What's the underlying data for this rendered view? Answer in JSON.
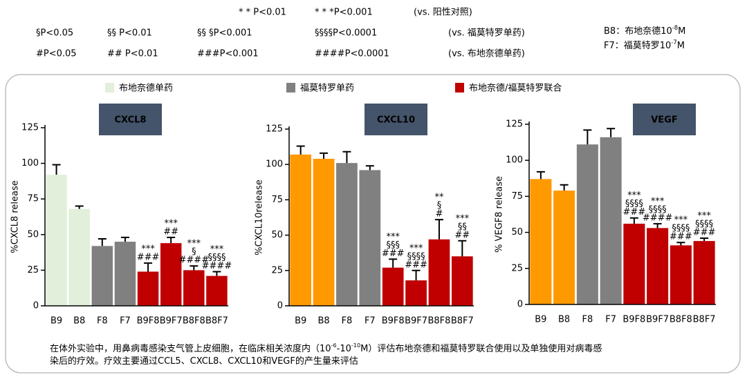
{
  "notes": {
    "rows": [
      [
        "* * P<0.01",
        "* * *P<0.001",
        "(vs. 阳性对照)"
      ],
      [
        "§P<0.05",
        "§§ P<0.01",
        "§§ §P<0.001",
        "§§§§P<0.0001",
        "(vs. 福莫特罗单药)"
      ],
      [
        "#P<0.05",
        "## P<0.01",
        "###P<0.001",
        "####P<0.0001",
        "(vs. 布地奈德单药)"
      ]
    ],
    "doses": [
      [
        "B8：布地奈德10",
        {
          "sup": "-8"
        },
        "M"
      ],
      [
        "F7：福莫特罗10",
        {
          "sup": "-7"
        },
        "M"
      ]
    ]
  },
  "legend": [
    {
      "label": "布地奈德单药",
      "color": "#e2efda"
    },
    {
      "label": "福莫特罗单药",
      "color": "#808080"
    },
    {
      "label": "布地奈德/福莫特罗联合",
      "color": "#c00000"
    }
  ],
  "chart_data": [
    {
      "type": "bar",
      "title": "CXCL8",
      "y_label": "%CXCL8 release",
      "categories": [
        "B9",
        "B8",
        "F8",
        "F7",
        "B9F8",
        "B9F7",
        "B8F8",
        "B8F7"
      ],
      "values": [
        92,
        68,
        42,
        45,
        24,
        44,
        25,
        21
      ],
      "errors": [
        7,
        2,
        5,
        3,
        6,
        4,
        3,
        3
      ],
      "colors": [
        "#e2efda",
        "#e2efda",
        "#808080",
        "#808080",
        "#c00000",
        "#c00000",
        "#c00000",
        "#c00000"
      ],
      "annotations": [
        null,
        null,
        null,
        null,
        [
          "***",
          "###"
        ],
        [
          "***",
          "##"
        ],
        [
          "***",
          "§",
          "####"
        ],
        [
          "***",
          "§§§§",
          "####"
        ]
      ],
      "ylim": [
        0,
        125
      ],
      "yticks": [
        0,
        25,
        50,
        75,
        100,
        125
      ]
    },
    {
      "type": "bar",
      "title": "CXCL10",
      "y_label": "%CXCL10release",
      "categories": [
        "B9",
        "B8",
        "F8",
        "F7",
        "B9F8",
        "B9F7",
        "B8F8",
        "B8F7"
      ],
      "values": [
        107,
        104,
        101,
        96,
        27,
        18,
        47,
        35
      ],
      "errors": [
        6,
        4,
        8,
        3,
        6,
        7,
        14,
        11
      ],
      "colors": [
        "#ff9900",
        "#ff9900",
        "#808080",
        "#808080",
        "#c00000",
        "#c00000",
        "#c00000",
        "#c00000"
      ],
      "annotations": [
        null,
        null,
        null,
        null,
        [
          "***",
          "§§§",
          "###"
        ],
        [
          "***",
          "§§§§",
          "###"
        ],
        [
          "**",
          "§",
          "#"
        ],
        [
          "***",
          "§§",
          "##"
        ]
      ],
      "ylim": [
        0,
        125
      ],
      "yticks": [
        0,
        25,
        50,
        75,
        100,
        125
      ]
    },
    {
      "type": "bar",
      "title": "VEGF",
      "y_label": "% VEGF8 release",
      "categories": [
        "B9",
        "B8",
        "F8",
        "F7",
        "B9F8",
        "B9F7",
        "B8F8",
        "B8F7"
      ],
      "values": [
        87,
        79,
        111,
        116,
        56,
        53,
        41,
        44
      ],
      "errors": [
        5,
        4,
        10,
        6,
        4,
        3,
        2,
        2
      ],
      "colors": [
        "#ff9900",
        "#ff9900",
        "#808080",
        "#808080",
        "#c00000",
        "#c00000",
        "#c00000",
        "#c00000"
      ],
      "annotations": [
        null,
        null,
        null,
        null,
        [
          "***",
          "§§§§",
          "###"
        ],
        [
          "***",
          "§§§§",
          "####"
        ],
        [
          "***",
          "§§§§",
          "###"
        ],
        [
          "***",
          "§§§§",
          "###"
        ]
      ],
      "ylim": [
        0,
        125
      ],
      "yticks": [
        0,
        25,
        50,
        75,
        100,
        125
      ]
    }
  ],
  "footnote": {
    "lines": [
      [
        "在体外实验中，用鼻病毒感染支气管上皮细胞，在临床相关浓度内（10",
        {
          "sup": "-6"
        },
        "-10",
        {
          "sup": "-10"
        },
        "M）评估布地奈德和福莫特罗联合使用以及单独使用对病毒感"
      ],
      [
        "染后的疗效。疗效主要通过CCL5、CXCL8、CXCL10和VEGF的产生量来评估"
      ]
    ]
  }
}
